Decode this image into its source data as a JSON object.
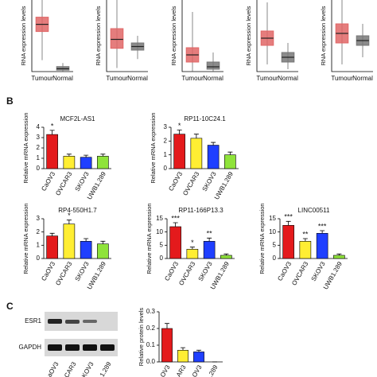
{
  "panels": {
    "b": "B",
    "c": "C"
  },
  "blot": {
    "bands": [
      "ESR1",
      "GAPDH"
    ],
    "lanes": [
      "aOV3",
      "CAR3",
      "KOV3",
      "1.289"
    ]
  },
  "chart_data": [
    {
      "type": "box",
      "y_label": "RNA expression levels",
      "categories": [
        "Tumour",
        "Normal"
      ],
      "colors": [
        "#e06666",
        "#777777"
      ],
      "ylim": [
        0,
        5
      ],
      "boxes": [
        {
          "whisker_low": 0.8,
          "q1": 2.8,
          "median": 3.3,
          "q3": 3.8,
          "whisker_high": 5.0
        },
        {
          "whisker_low": 0.0,
          "q1": 0.1,
          "median": 0.2,
          "q3": 0.35,
          "whisker_high": 0.6
        }
      ]
    },
    {
      "type": "box",
      "y_label": "RNA expression levels",
      "categories": [
        "Tumour",
        "Normal"
      ],
      "colors": [
        "#e06666",
        "#777777"
      ],
      "ylim": [
        0,
        4
      ],
      "boxes": [
        {
          "whisker_low": 0.2,
          "q1": 1.3,
          "median": 1.8,
          "q3": 2.4,
          "whisker_high": 4.0
        },
        {
          "whisker_low": 0.7,
          "q1": 1.2,
          "median": 1.4,
          "q3": 1.6,
          "whisker_high": 2.0
        }
      ]
    },
    {
      "type": "box",
      "y_label": "RNA expression levels",
      "categories": [
        "Tumour",
        "Normal"
      ],
      "colors": [
        "#e06666",
        "#777777"
      ],
      "ylim": [
        0,
        3
      ],
      "boxes": [
        {
          "whisker_low": 0.0,
          "q1": 0.4,
          "median": 0.7,
          "q3": 1.0,
          "whisker_high": 2.5
        },
        {
          "whisker_low": 0.0,
          "q1": 0.1,
          "median": 0.2,
          "q3": 0.4,
          "whisker_high": 0.8
        }
      ]
    },
    {
      "type": "box",
      "y_label": "RNA expression levels",
      "categories": [
        "Tumour",
        "Normal"
      ],
      "colors": [
        "#e06666",
        "#777777"
      ],
      "ylim": [
        0,
        3
      ],
      "boxes": [
        {
          "whisker_low": 0.3,
          "q1": 1.1,
          "median": 1.4,
          "q3": 1.7,
          "whisker_high": 2.9
        },
        {
          "whisker_low": 0.1,
          "q1": 0.4,
          "median": 0.6,
          "q3": 0.8,
          "whisker_high": 1.2
        }
      ]
    },
    {
      "type": "box",
      "y_label": "RNA expression levels",
      "categories": [
        "Tumour",
        "Normal"
      ],
      "colors": [
        "#e06666",
        "#777777"
      ],
      "ylim": [
        0,
        3
      ],
      "boxes": [
        {
          "whisker_low": 0.3,
          "q1": 1.2,
          "median": 1.6,
          "q3": 2.0,
          "whisker_high": 3.0
        },
        {
          "whisker_low": 0.6,
          "q1": 1.1,
          "median": 1.3,
          "q3": 1.5,
          "whisker_high": 2.0
        }
      ]
    },
    {
      "type": "bar",
      "title": "MCF2L-AS1",
      "y_label": "Relative mRNA expression",
      "categories": [
        "CaOV3",
        "OVCAR3",
        "SKOV3",
        "UWB1.289"
      ],
      "colors": [
        "#e41a1c",
        "#ffee33",
        "#1f3fff",
        "#8fe33a"
      ],
      "values": [
        3.3,
        1.2,
        1.1,
        1.2
      ],
      "errors": [
        0.4,
        0.2,
        0.2,
        0.2
      ],
      "annotations": [
        "*",
        null,
        null,
        null
      ],
      "ylim": [
        0,
        4
      ],
      "yticks": [
        0,
        1,
        2,
        3,
        4
      ]
    },
    {
      "type": "bar",
      "title": "RP11-10C24.1",
      "y_label": "Relative mRNA expression",
      "categories": [
        "CaOV3",
        "OVCAR3",
        "SKOV3",
        "UWB1.289"
      ],
      "colors": [
        "#e41a1c",
        "#ffee33",
        "#1f3fff",
        "#8fe33a"
      ],
      "values": [
        2.5,
        2.2,
        1.7,
        1.0
      ],
      "errors": [
        0.3,
        0.3,
        0.2,
        0.2
      ],
      "annotations": [
        "*",
        null,
        null,
        null
      ],
      "ylim": [
        0,
        3
      ],
      "yticks": [
        0,
        1,
        2,
        3
      ]
    },
    {
      "type": "bar",
      "title": "RP4-550H1.7",
      "y_label": "Relative mRNA expression",
      "categories": [
        "CaOV3",
        "OVCAR3",
        "SKOV3",
        "UWB1.289"
      ],
      "colors": [
        "#e41a1c",
        "#ffee33",
        "#1f3fff",
        "#8fe33a"
      ],
      "values": [
        1.7,
        2.6,
        1.3,
        1.1
      ],
      "errors": [
        0.2,
        0.3,
        0.2,
        0.2
      ],
      "annotations": [
        null,
        "*",
        null,
        null
      ],
      "ylim": [
        0,
        3
      ],
      "yticks": [
        0,
        1,
        2,
        3
      ]
    },
    {
      "type": "bar",
      "title": "RP11-166P13.3",
      "y_label": "Relative mRNA expression",
      "categories": [
        "CaOV3",
        "OVCAR3",
        "SKOV3",
        "UWB1.289"
      ],
      "colors": [
        "#e41a1c",
        "#ffee33",
        "#1f3fff",
        "#8fe33a"
      ],
      "values": [
        12,
        3.5,
        6.5,
        1.2
      ],
      "errors": [
        1.5,
        0.8,
        1.2,
        0.5
      ],
      "annotations": [
        "***",
        "*",
        "**",
        null
      ],
      "ylim": [
        0,
        15
      ],
      "yticks": [
        0,
        5,
        10,
        15
      ]
    },
    {
      "type": "bar",
      "title": "LINC00511",
      "y_label": "Relative mRNA expression",
      "categories": [
        "CaOV3",
        "OVCAR3",
        "SKOV3",
        "UWB1.289"
      ],
      "colors": [
        "#e41a1c",
        "#ffee33",
        "#1f3fff",
        "#8fe33a"
      ],
      "values": [
        12.5,
        6.5,
        9.5,
        1.2
      ],
      "errors": [
        1.5,
        1.0,
        1.0,
        0.5
      ],
      "annotations": [
        "***",
        "**",
        "***",
        null
      ],
      "ylim": [
        0,
        15
      ],
      "yticks": [
        0,
        5,
        10,
        15
      ]
    },
    {
      "type": "bar",
      "y_label": "Relative protein levels",
      "categories": [
        "OV3",
        "AR3",
        "OV3",
        ".289"
      ],
      "colors": [
        "#e41a1c",
        "#ffee33",
        "#1f3fff",
        "#8fe33a"
      ],
      "values": [
        0.2,
        0.07,
        0.06,
        0
      ],
      "errors": [
        0.03,
        0.015,
        0.01,
        0
      ],
      "annotations": [
        null,
        null,
        null,
        null
      ],
      "ylim": [
        0,
        0.3
      ],
      "yticks": [
        {
          "value": 0,
          "label": "0.0"
        },
        0.1,
        0.2,
        0.3
      ]
    }
  ]
}
